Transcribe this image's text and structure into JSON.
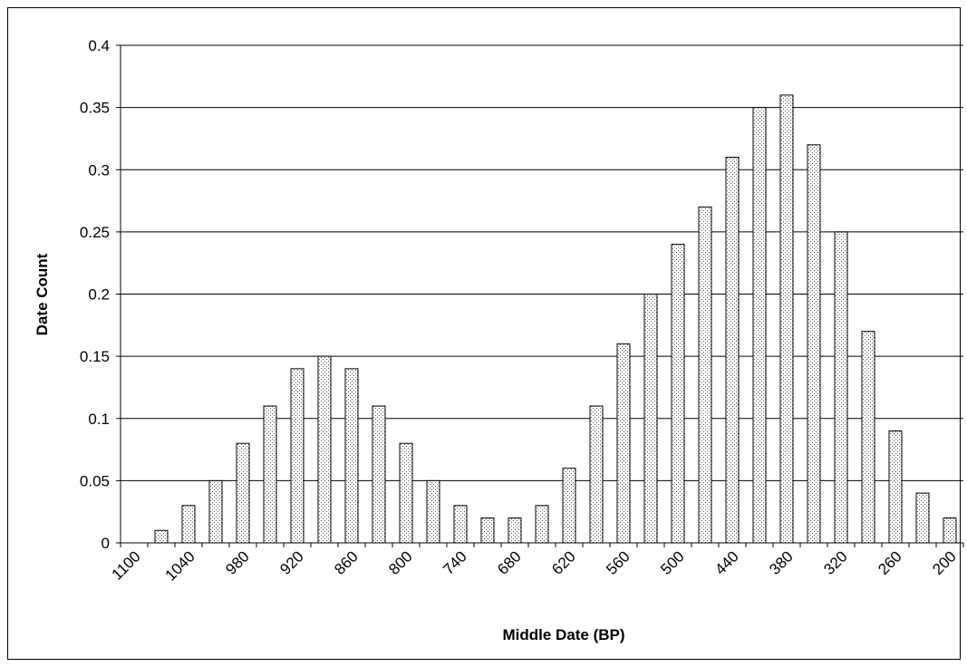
{
  "chart_data": {
    "type": "bar",
    "ylabel": "Date Count",
    "xlabel": "Middle Date (BP)",
    "categories": [
      "1100",
      null,
      "1040",
      null,
      "980",
      null,
      "920",
      null,
      "860",
      null,
      "800",
      null,
      "740",
      null,
      "680",
      null,
      "620",
      null,
      "560",
      null,
      "500",
      null,
      "440",
      null,
      "380",
      null,
      "320",
      null,
      "260",
      null,
      "200"
    ],
    "values": [
      0,
      0.01,
      0.03,
      0.05,
      0.08,
      0.11,
      0.14,
      0.15,
      0.14,
      0.11,
      0.08,
      0.05,
      0.03,
      0.02,
      0.02,
      0.03,
      0.06,
      0.11,
      0.16,
      0.2,
      0.24,
      0.27,
      0.31,
      0.35,
      0.36,
      0.32,
      0.25,
      0.17,
      0.09,
      0.04,
      0.02
    ],
    "color": "#000000",
    "ylim": [
      0,
      0.4
    ],
    "yticks": [
      0,
      0.05,
      0.1,
      0.15,
      0.2,
      0.25,
      0.3,
      0.35,
      0.4
    ],
    "grid": true
  }
}
